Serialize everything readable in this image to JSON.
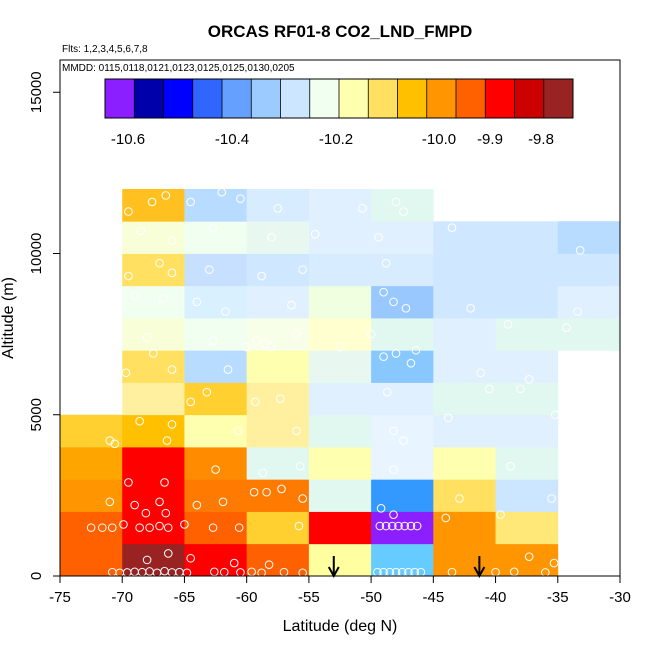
{
  "chart_data": {
    "type": "heatmap",
    "title": "ORCAS RF01-8 CO2_LND_FMPD",
    "flights_note": "Flts: 1,2,3,4,5,6,7,8",
    "dates_note": "MMDD: 0115,0118,0121,0123,0125,0125,0130,0205",
    "xlabel": "Latitude (deg N)",
    "ylabel": "Altitude (m)",
    "xlim": [
      -75,
      -30
    ],
    "ylim": [
      0,
      16000
    ],
    "x_ticks": [
      -75,
      -70,
      -65,
      -60,
      -55,
      -50,
      -45,
      -40,
      -35,
      -30
    ],
    "x_tick_labels": [
      "-75",
      "-70",
      "-65",
      "-60",
      "-55",
      "-50",
      "-45",
      "-40",
      "-35",
      "-30"
    ],
    "y_ticks": [
      0,
      5000,
      10000,
      15000
    ],
    "y_tick_labels": [
      "0",
      "5000",
      "10000",
      "15000"
    ],
    "bin_width_deg": 5,
    "bin_height_m": 1000,
    "colorbar": {
      "colors": [
        "#8B1FFF",
        "#0000AA",
        "#0000FF",
        "#3066FF",
        "#66A0FF",
        "#9CCBFF",
        "#CCE6FF",
        "#F0FFF0",
        "#FFFFB0",
        "#FFE060",
        "#FFC000",
        "#FF9500",
        "#FF6000",
        "#FF0000",
        "#CC0000",
        "#992222"
      ],
      "labels": [
        "-10.6",
        "-10.4",
        "-10.2",
        "-10.0",
        "-9.9",
        "-9.8"
      ]
    },
    "cells": [
      {
        "lat": -72.5,
        "alt": 500,
        "color": "#FF6000"
      },
      {
        "lat": -67.5,
        "alt": 500,
        "color": "#992222"
      },
      {
        "lat": -62.5,
        "alt": 500,
        "color": "#FF0000"
      },
      {
        "lat": -57.5,
        "alt": 500,
        "color": "#FF6000"
      },
      {
        "lat": -52.5,
        "alt": 500,
        "color": "#FFFFA0"
      },
      {
        "lat": -47.5,
        "alt": 500,
        "color": "#66CCFF"
      },
      {
        "lat": -42.5,
        "alt": 500,
        "color": "#FF9500"
      },
      {
        "lat": -37.5,
        "alt": 500,
        "color": "#FF9500"
      },
      {
        "lat": -72.5,
        "alt": 1500,
        "color": "#FF6000"
      },
      {
        "lat": -67.5,
        "alt": 1500,
        "color": "#FF0000"
      },
      {
        "lat": -62.5,
        "alt": 1500,
        "color": "#FF6000"
      },
      {
        "lat": -57.5,
        "alt": 1500,
        "color": "#FFD030"
      },
      {
        "lat": -52.5,
        "alt": 1500,
        "color": "#FF0000"
      },
      {
        "lat": -47.5,
        "alt": 1500,
        "color": "#8B1FFF"
      },
      {
        "lat": -42.5,
        "alt": 1500,
        "color": "#FF9500"
      },
      {
        "lat": -37.5,
        "alt": 1500,
        "color": "#FFE878"
      },
      {
        "lat": -72.5,
        "alt": 2500,
        "color": "#FF9500"
      },
      {
        "lat": -67.5,
        "alt": 2500,
        "color": "#FF0000"
      },
      {
        "lat": -62.5,
        "alt": 2500,
        "color": "#FF7A00"
      },
      {
        "lat": -57.5,
        "alt": 2500,
        "color": "#FF7A00"
      },
      {
        "lat": -52.5,
        "alt": 2500,
        "color": "#E0F8F0"
      },
      {
        "lat": -47.5,
        "alt": 2500,
        "color": "#3399FF"
      },
      {
        "lat": -42.5,
        "alt": 2500,
        "color": "#FFE060"
      },
      {
        "lat": -37.5,
        "alt": 2500,
        "color": "#CCE6FF"
      },
      {
        "lat": -72.5,
        "alt": 3500,
        "color": "#FFA500"
      },
      {
        "lat": -67.5,
        "alt": 3500,
        "color": "#FF0000"
      },
      {
        "lat": -62.5,
        "alt": 3500,
        "color": "#FF8C00"
      },
      {
        "lat": -57.5,
        "alt": 3500,
        "color": "#E0F8F0"
      },
      {
        "lat": -52.5,
        "alt": 3500,
        "color": "#FFFFB0"
      },
      {
        "lat": -47.5,
        "alt": 3500,
        "color": "#E8F4FF"
      },
      {
        "lat": -42.5,
        "alt": 3500,
        "color": "#FFFFB0"
      },
      {
        "lat": -37.5,
        "alt": 3500,
        "color": "#E0F8F0"
      },
      {
        "lat": -72.5,
        "alt": 4500,
        "color": "#FFD030"
      },
      {
        "lat": -67.5,
        "alt": 4500,
        "color": "#FFC000"
      },
      {
        "lat": -62.5,
        "alt": 4500,
        "color": "#FFFFB0"
      },
      {
        "lat": -57.5,
        "alt": 4500,
        "color": "#FFF0A0"
      },
      {
        "lat": -52.5,
        "alt": 4500,
        "color": "#E0F8F0"
      },
      {
        "lat": -47.5,
        "alt": 4500,
        "color": "#E8F4FF"
      },
      {
        "lat": -42.5,
        "alt": 4500,
        "color": "#E0F0FF"
      },
      {
        "lat": -37.5,
        "alt": 4500,
        "color": "#E0F0FF"
      },
      {
        "lat": -67.5,
        "alt": 5500,
        "color": "#FFF0A0"
      },
      {
        "lat": -62.5,
        "alt": 5500,
        "color": "#FFD030"
      },
      {
        "lat": -57.5,
        "alt": 5500,
        "color": "#FFF0A0"
      },
      {
        "lat": -52.5,
        "alt": 5500,
        "color": "#E0F0FF"
      },
      {
        "lat": -47.5,
        "alt": 5500,
        "color": "#E0F0FF"
      },
      {
        "lat": -42.5,
        "alt": 5500,
        "color": "#E0F8F0"
      },
      {
        "lat": -37.5,
        "alt": 5500,
        "color": "#E0F8F0"
      },
      {
        "lat": -67.5,
        "alt": 6500,
        "color": "#FFE060"
      },
      {
        "lat": -62.5,
        "alt": 6500,
        "color": "#B8DCFF"
      },
      {
        "lat": -57.5,
        "alt": 6500,
        "color": "#FFFFB0"
      },
      {
        "lat": -52.5,
        "alt": 6500,
        "color": "#E8F8F0"
      },
      {
        "lat": -47.5,
        "alt": 6500,
        "color": "#88C8FF"
      },
      {
        "lat": -42.5,
        "alt": 6500,
        "color": "#E0F0FF"
      },
      {
        "lat": -37.5,
        "alt": 6500,
        "color": "#E0F0FF"
      },
      {
        "lat": -67.5,
        "alt": 7500,
        "color": "#F8FFD8"
      },
      {
        "lat": -62.5,
        "alt": 7500,
        "color": "#F0FFF0"
      },
      {
        "lat": -57.5,
        "alt": 7500,
        "color": "#F8FFE8"
      },
      {
        "lat": -52.5,
        "alt": 7500,
        "color": "#FFFFD0"
      },
      {
        "lat": -47.5,
        "alt": 7500,
        "color": "#E0F8F0"
      },
      {
        "lat": -42.5,
        "alt": 7500,
        "color": "#E0F0FF"
      },
      {
        "lat": -37.5,
        "alt": 7500,
        "color": "#E0F8F0"
      },
      {
        "lat": -32.5,
        "alt": 7500,
        "color": "#E0F8F0"
      },
      {
        "lat": -67.5,
        "alt": 8500,
        "color": "#F0FFF0"
      },
      {
        "lat": -62.5,
        "alt": 8500,
        "color": "#D8F0FF"
      },
      {
        "lat": -57.5,
        "alt": 8500,
        "color": "#E0F0FF"
      },
      {
        "lat": -52.5,
        "alt": 8500,
        "color": "#F0FFE0"
      },
      {
        "lat": -47.5,
        "alt": 8500,
        "color": "#99C8FF"
      },
      {
        "lat": -42.5,
        "alt": 8500,
        "color": "#D0E8FF"
      },
      {
        "lat": -37.5,
        "alt": 8500,
        "color": "#D0E8FF"
      },
      {
        "lat": -32.5,
        "alt": 8500,
        "color": "#E0F0FF"
      },
      {
        "lat": -67.5,
        "alt": 9500,
        "color": "#FFE060"
      },
      {
        "lat": -62.5,
        "alt": 9500,
        "color": "#C8E0FF"
      },
      {
        "lat": -57.5,
        "alt": 9500,
        "color": "#D0E8FF"
      },
      {
        "lat": -52.5,
        "alt": 9500,
        "color": "#D8ECFF"
      },
      {
        "lat": -47.5,
        "alt": 9500,
        "color": "#D8ECFF"
      },
      {
        "lat": -42.5,
        "alt": 9500,
        "color": "#D0E8FF"
      },
      {
        "lat": -37.5,
        "alt": 9500,
        "color": "#D0E8FF"
      },
      {
        "lat": -32.5,
        "alt": 9500,
        "color": "#D0E8FF"
      },
      {
        "lat": -67.5,
        "alt": 10500,
        "color": "#F8FFD8"
      },
      {
        "lat": -62.5,
        "alt": 10500,
        "color": "#F0FFF0"
      },
      {
        "lat": -57.5,
        "alt": 10500,
        "color": "#E8F8F0"
      },
      {
        "lat": -52.5,
        "alt": 10500,
        "color": "#E0F0FF"
      },
      {
        "lat": -47.5,
        "alt": 10500,
        "color": "#E0F0FF"
      },
      {
        "lat": -42.5,
        "alt": 10500,
        "color": "#D0E8FF"
      },
      {
        "lat": -37.5,
        "alt": 10500,
        "color": "#D0E8FF"
      },
      {
        "lat": -32.5,
        "alt": 10500,
        "color": "#B8DCFF"
      },
      {
        "lat": -67.5,
        "alt": 11500,
        "color": "#FFC020"
      },
      {
        "lat": -62.5,
        "alt": 11500,
        "color": "#B8DCFF"
      },
      {
        "lat": -57.5,
        "alt": 11500,
        "color": "#D8ECFF"
      },
      {
        "lat": -52.5,
        "alt": 11500,
        "color": "#E0F0FF"
      },
      {
        "lat": -47.5,
        "alt": 11500,
        "color": "#E0F8F0"
      }
    ],
    "points": [
      {
        "lat": -70.8,
        "alt": 120
      },
      {
        "lat": -70.2,
        "alt": 100
      },
      {
        "lat": -69.6,
        "alt": 110
      },
      {
        "lat": -69.0,
        "alt": 130
      },
      {
        "lat": -68.4,
        "alt": 120
      },
      {
        "lat": -67.8,
        "alt": 140
      },
      {
        "lat": -67.2,
        "alt": 100
      },
      {
        "lat": -66.6,
        "alt": 150
      },
      {
        "lat": -66.0,
        "alt": 110
      },
      {
        "lat": -65.4,
        "alt": 120
      },
      {
        "lat": -64.8,
        "alt": 100
      },
      {
        "lat": -62.6,
        "alt": 130
      },
      {
        "lat": -61.8,
        "alt": 120
      },
      {
        "lat": -60.5,
        "alt": 110
      },
      {
        "lat": -59.6,
        "alt": 130
      },
      {
        "lat": -58.8,
        "alt": 100
      },
      {
        "lat": -57.0,
        "alt": 120
      },
      {
        "lat": -55.5,
        "alt": 100
      },
      {
        "lat": -49.5,
        "alt": 120
      },
      {
        "lat": -49.0,
        "alt": 120
      },
      {
        "lat": -48.5,
        "alt": 120
      },
      {
        "lat": -48.0,
        "alt": 120
      },
      {
        "lat": -47.5,
        "alt": 120
      },
      {
        "lat": -47.0,
        "alt": 120
      },
      {
        "lat": -46.5,
        "alt": 120
      },
      {
        "lat": -46.0,
        "alt": 120
      },
      {
        "lat": -43.5,
        "alt": 120
      },
      {
        "lat": -40.0,
        "alt": 120
      },
      {
        "lat": -38.5,
        "alt": 130
      },
      {
        "lat": -36.0,
        "alt": 110
      },
      {
        "lat": -68.0,
        "alt": 500
      },
      {
        "lat": -66.3,
        "alt": 700
      },
      {
        "lat": -64.5,
        "alt": 550
      },
      {
        "lat": -61.0,
        "alt": 400
      },
      {
        "lat": -58.2,
        "alt": 350
      },
      {
        "lat": -37.3,
        "alt": 600
      },
      {
        "lat": -35.3,
        "alt": 400
      },
      {
        "lat": -72.5,
        "alt": 1500
      },
      {
        "lat": -71.6,
        "alt": 1500
      },
      {
        "lat": -70.8,
        "alt": 1500
      },
      {
        "lat": -69.9,
        "alt": 1600
      },
      {
        "lat": -68.6,
        "alt": 1500
      },
      {
        "lat": -67.8,
        "alt": 1500
      },
      {
        "lat": -67.0,
        "alt": 1550
      },
      {
        "lat": -66.3,
        "alt": 1500
      },
      {
        "lat": -65.0,
        "alt": 1600
      },
      {
        "lat": -68.1,
        "alt": 1950
      },
      {
        "lat": -66.5,
        "alt": 1950
      },
      {
        "lat": -62.7,
        "alt": 1500
      },
      {
        "lat": -60.6,
        "alt": 1500
      },
      {
        "lat": -55.8,
        "alt": 1550
      },
      {
        "lat": -49.3,
        "alt": 1550
      },
      {
        "lat": -48.8,
        "alt": 1550
      },
      {
        "lat": -48.3,
        "alt": 1550
      },
      {
        "lat": -47.8,
        "alt": 1550
      },
      {
        "lat": -47.3,
        "alt": 1550
      },
      {
        "lat": -46.8,
        "alt": 1550
      },
      {
        "lat": -46.3,
        "alt": 1550
      },
      {
        "lat": -48.2,
        "alt": 1900
      },
      {
        "lat": -49.2,
        "alt": 2100
      },
      {
        "lat": -44.0,
        "alt": 1800
      },
      {
        "lat": -39.6,
        "alt": 1900
      },
      {
        "lat": -71.0,
        "alt": 2300
      },
      {
        "lat": -69.0,
        "alt": 2200
      },
      {
        "lat": -67.0,
        "alt": 2300
      },
      {
        "lat": -64.0,
        "alt": 2200
      },
      {
        "lat": -61.9,
        "alt": 2300
      },
      {
        "lat": -59.4,
        "alt": 2600
      },
      {
        "lat": -58.4,
        "alt": 2600
      },
      {
        "lat": -57.2,
        "alt": 2700
      },
      {
        "lat": -55.5,
        "alt": 2400
      },
      {
        "lat": -42.9,
        "alt": 2400
      },
      {
        "lat": -35.5,
        "alt": 2400
      },
      {
        "lat": -69.5,
        "alt": 2900
      },
      {
        "lat": -66.6,
        "alt": 2900
      },
      {
        "lat": -62.5,
        "alt": 3300
      },
      {
        "lat": -58.7,
        "alt": 3200
      },
      {
        "lat": -55.7,
        "alt": 3400
      },
      {
        "lat": -48.2,
        "alt": 3300
      },
      {
        "lat": -38.8,
        "alt": 3400
      },
      {
        "lat": -71.0,
        "alt": 4200
      },
      {
        "lat": -70.6,
        "alt": 4100
      },
      {
        "lat": -66.4,
        "alt": 4200
      },
      {
        "lat": -68.6,
        "alt": 4800
      },
      {
        "lat": -66.0,
        "alt": 4700
      },
      {
        "lat": -60.7,
        "alt": 4500
      },
      {
        "lat": -56.0,
        "alt": 4500
      },
      {
        "lat": -48.2,
        "alt": 4500
      },
      {
        "lat": -47.4,
        "alt": 4200
      },
      {
        "lat": -43.8,
        "alt": 4900
      },
      {
        "lat": -35.2,
        "alt": 5000
      },
      {
        "lat": -64.5,
        "alt": 5400
      },
      {
        "lat": -63.2,
        "alt": 5700
      },
      {
        "lat": -59.3,
        "alt": 5400
      },
      {
        "lat": -57.3,
        "alt": 5500
      },
      {
        "lat": -48.7,
        "alt": 5700
      },
      {
        "lat": -40.5,
        "alt": 5800
      },
      {
        "lat": -38.0,
        "alt": 5800
      },
      {
        "lat": -69.7,
        "alt": 6300
      },
      {
        "lat": -67.5,
        "alt": 6900
      },
      {
        "lat": -66.0,
        "alt": 6400
      },
      {
        "lat": -61.5,
        "alt": 6400
      },
      {
        "lat": -58.0,
        "alt": 7100
      },
      {
        "lat": -49.0,
        "alt": 6800
      },
      {
        "lat": -48.0,
        "alt": 6900
      },
      {
        "lat": -46.8,
        "alt": 6600
      },
      {
        "lat": -41.2,
        "alt": 6300
      },
      {
        "lat": -37.3,
        "alt": 6100
      },
      {
        "lat": -68.0,
        "alt": 7400
      },
      {
        "lat": -62.7,
        "alt": 7300
      },
      {
        "lat": -60.0,
        "alt": 7100
      },
      {
        "lat": -59.2,
        "alt": 7300
      },
      {
        "lat": -58.5,
        "alt": 7200
      },
      {
        "lat": -56.0,
        "alt": 7500
      },
      {
        "lat": -52.5,
        "alt": 7100
      },
      {
        "lat": -50.0,
        "alt": 7500
      },
      {
        "lat": -46.4,
        "alt": 7000
      },
      {
        "lat": -39.0,
        "alt": 7800
      },
      {
        "lat": -34.3,
        "alt": 7700
      },
      {
        "lat": -69.0,
        "alt": 8700
      },
      {
        "lat": -66.7,
        "alt": 8600
      },
      {
        "lat": -64.0,
        "alt": 8500
      },
      {
        "lat": -61.7,
        "alt": 8200
      },
      {
        "lat": -56.4,
        "alt": 8400
      },
      {
        "lat": -49.0,
        "alt": 8800
      },
      {
        "lat": -48.2,
        "alt": 8500
      },
      {
        "lat": -47.2,
        "alt": 8300
      },
      {
        "lat": -42.0,
        "alt": 8300
      },
      {
        "lat": -33.4,
        "alt": 8200
      },
      {
        "lat": -69.5,
        "alt": 9300
      },
      {
        "lat": -67.0,
        "alt": 9700
      },
      {
        "lat": -66.0,
        "alt": 9400
      },
      {
        "lat": -63.0,
        "alt": 9500
      },
      {
        "lat": -58.8,
        "alt": 9300
      },
      {
        "lat": -55.5,
        "alt": 9500
      },
      {
        "lat": -48.8,
        "alt": 9700
      },
      {
        "lat": -68.5,
        "alt": 10700
      },
      {
        "lat": -66.0,
        "alt": 10400
      },
      {
        "lat": -62.7,
        "alt": 10800
      },
      {
        "lat": -58.0,
        "alt": 10500
      },
      {
        "lat": -54.5,
        "alt": 10600
      },
      {
        "lat": -49.4,
        "alt": 10500
      },
      {
        "lat": -43.5,
        "alt": 10800
      },
      {
        "lat": -33.2,
        "alt": 10100
      },
      {
        "lat": -69.5,
        "alt": 11300
      },
      {
        "lat": -67.6,
        "alt": 11600
      },
      {
        "lat": -66.5,
        "alt": 11800
      },
      {
        "lat": -64.5,
        "alt": 11600
      },
      {
        "lat": -62.0,
        "alt": 11900
      },
      {
        "lat": -60.5,
        "alt": 11700
      },
      {
        "lat": -57.5,
        "alt": 11400
      },
      {
        "lat": -50.7,
        "alt": 11400
      },
      {
        "lat": -48.0,
        "alt": 11600
      },
      {
        "lat": -47.4,
        "alt": 11300
      }
    ],
    "arrows": [
      {
        "lat": -53.0
      },
      {
        "lat": -41.3
      }
    ]
  }
}
